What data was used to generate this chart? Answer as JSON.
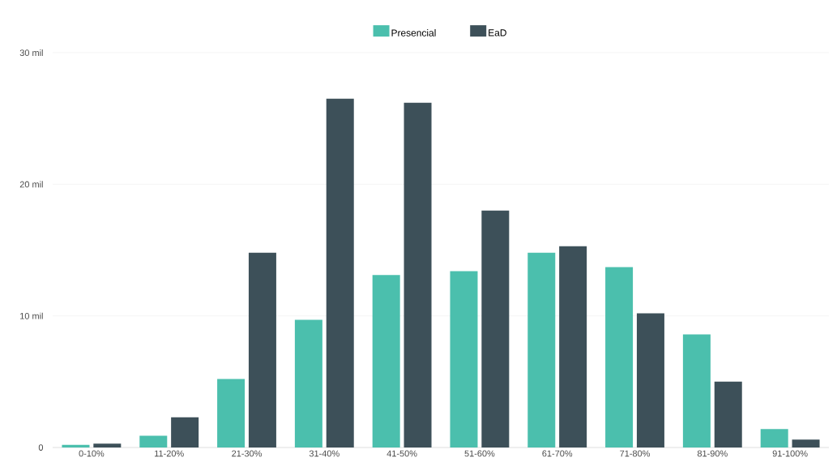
{
  "chart_data": {
    "type": "bar",
    "categories": [
      "0-10%",
      "11-20%",
      "21-30%",
      "31-40%",
      "41-50%",
      "51-60%",
      "61-70%",
      "71-80%",
      "81-90%",
      "91-100%"
    ],
    "series": [
      {
        "name": "Presencial",
        "color": "#4bbfad",
        "values": [
          0.2,
          0.9,
          5.2,
          9.7,
          13.1,
          13.4,
          14.8,
          13.7,
          8.6,
          1.4
        ]
      },
      {
        "name": "EaD",
        "color": "#3d5059",
        "values": [
          0.3,
          2.3,
          14.8,
          26.5,
          26.2,
          18.0,
          15.3,
          10.2,
          5.0,
          0.6
        ]
      }
    ],
    "ylim": [
      0,
      30
    ],
    "yticks": [
      0,
      {
        "value": 10,
        "label": "10 mil"
      },
      {
        "value": 20,
        "label": "20 mil"
      },
      {
        "value": 30,
        "label": "30 mil"
      }
    ],
    "grid": "y",
    "legend": "top"
  }
}
